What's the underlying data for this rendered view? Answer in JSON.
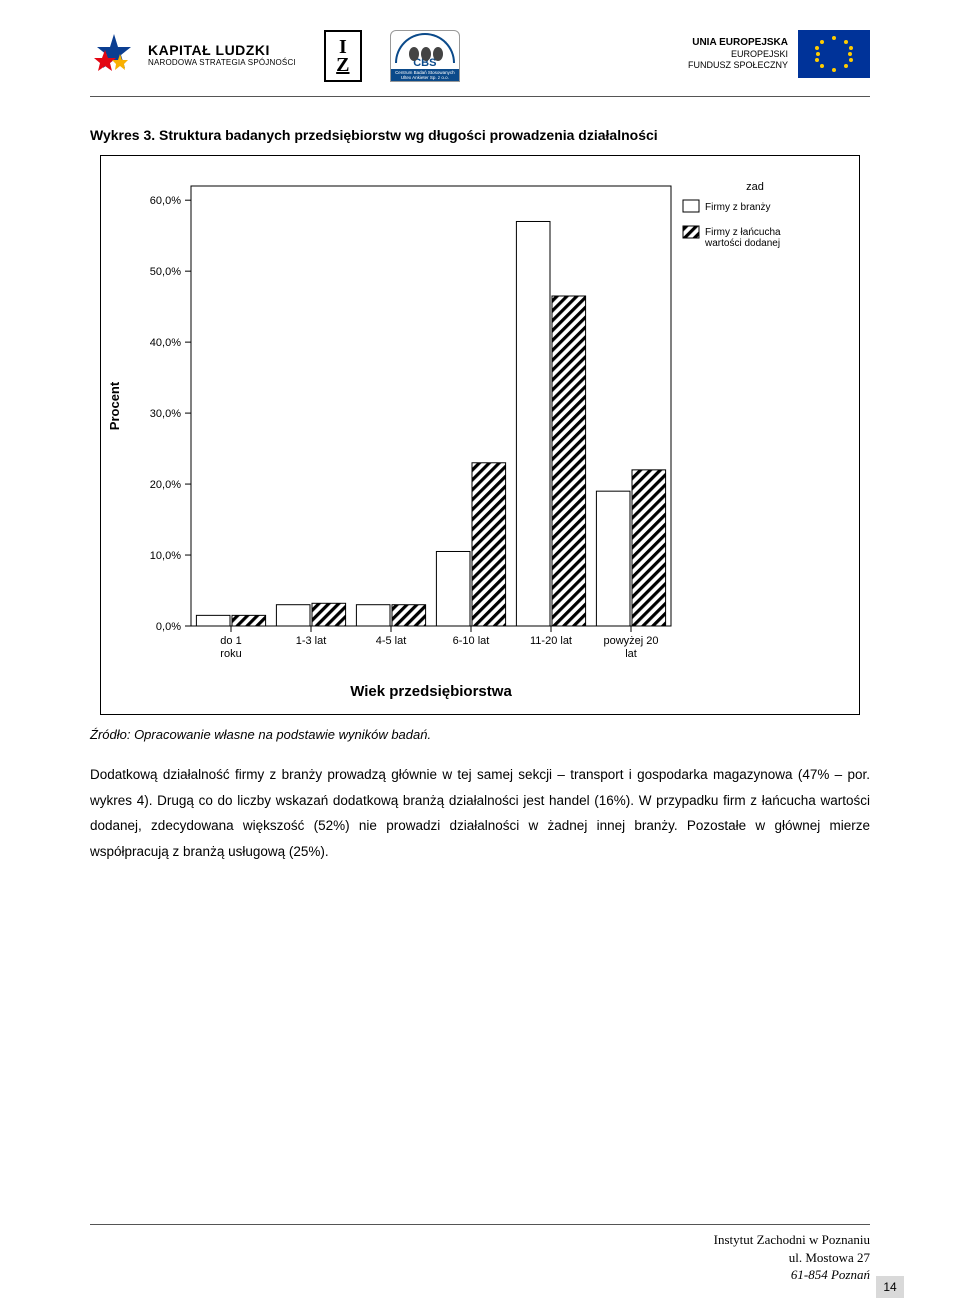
{
  "header": {
    "kapital_line1": "KAPITAŁ LUDZKI",
    "kapital_line2": "NARODOWA STRATEGIA SPÓJNOŚCI",
    "iz_top": "I",
    "iz_bottom": "Z",
    "cbs_label": "CBS",
    "cbs_sub": "Centrum Badań Stosowanych Ultex Ankieter Sp. z o.o.",
    "ue_line1": "UNIA EUROPEJSKA",
    "ue_line2": "EUROPEJSKI",
    "ue_line3": "FUNDUSZ SPOŁECZNY"
  },
  "title": "Wykres 3. Struktura badanych przedsiębiorstw wg długości prowadzenia działalności",
  "chart": {
    "type": "bar",
    "y_label": "Procent",
    "x_label": "Wiek przedsiębiorstwa",
    "legend_title": "zad",
    "legend": [
      "Firmy z branży",
      "Firmy z łańcucha wartości dodanej"
    ],
    "categories": [
      "do 1 roku",
      "1-3 lat",
      "4-5 lat",
      "6-10 lat",
      "11-20 lat",
      "powyżej 20 lat"
    ],
    "series": [
      {
        "name": "Firmy z branży",
        "values": [
          1.5,
          3.0,
          3.0,
          10.5,
          57.0,
          19.0
        ],
        "fill": "#ffffff",
        "hatch": false
      },
      {
        "name": "Firmy z łańcucha wartości dodanej",
        "values": [
          1.5,
          3.2,
          3.0,
          23.0,
          46.5,
          22.0
        ],
        "fill": "#ffffff",
        "hatch": true
      }
    ],
    "ylim": [
      0,
      62
    ],
    "ytick_values": [
      0,
      10,
      20,
      30,
      40,
      50,
      60
    ],
    "ytick_labels": [
      "0,0%",
      "10,0%",
      "20,0%",
      "30,0%",
      "40,0%",
      "50,0%",
      "60,0%"
    ],
    "axis_color": "#000000",
    "frame_color": "#000000",
    "background": "#ffffff",
    "bar_stroke": "#000000",
    "bar_width": 0.42,
    "font_size_axis": 11,
    "font_size_label": 13,
    "font_size_legend": 10
  },
  "source": "Źródło: Opracowanie własne na podstawie wyników badań.",
  "paragraph": "Dodatkową działalność firmy z branży prowadzą głównie w tej samej sekcji – transport i gospodarka magazynowa (47% – por. wykres 4). Drugą co do liczby wskazań dodatkową branżą działalności jest handel (16%). W przypadku firm z łańcucha wartości dodanej, zdecydowana większość (52%) nie prowadzi działalności w żadnej innej branży. Pozostałe w głównej mierze współpracują z branżą usługową (25%).",
  "footer": {
    "line1": "Instytut Zachodni w Poznaniu",
    "line2": "ul. Mostowa 27",
    "line3": "61-854 Poznań",
    "page": "14"
  }
}
